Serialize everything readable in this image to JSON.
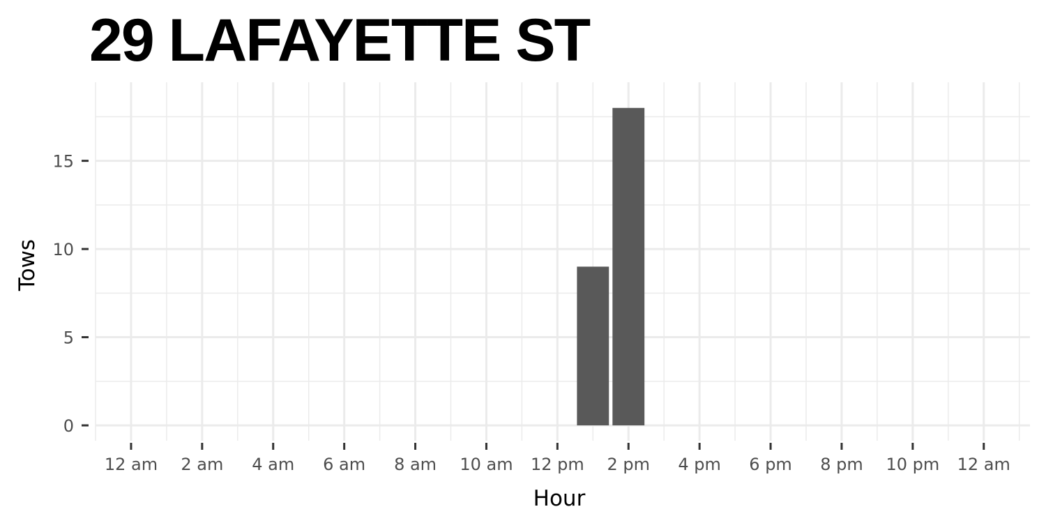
{
  "chart_data": {
    "type": "bar",
    "title": "29 LAFAYETTE ST",
    "xlabel": "Hour",
    "ylabel": "Tows",
    "x_tick_labels": [
      "12 am",
      "2 am",
      "4 am",
      "6 am",
      "8 am",
      "10 am",
      "12 pm",
      "2 pm",
      "4 pm",
      "6 pm",
      "8 pm",
      "10 pm",
      "12 am"
    ],
    "y_ticks": [
      0,
      5,
      10,
      15
    ],
    "xlim_hours": [
      -1,
      25.3
    ],
    "ylim": [
      0,
      18.9
    ],
    "bars": [
      {
        "hour": 13,
        "label": "1 pm",
        "value": 9
      },
      {
        "hour": 14,
        "label": "2 pm",
        "value": 18
      }
    ],
    "grid": true,
    "bar_color": "#595959",
    "grid_color": "#ebebeb"
  }
}
